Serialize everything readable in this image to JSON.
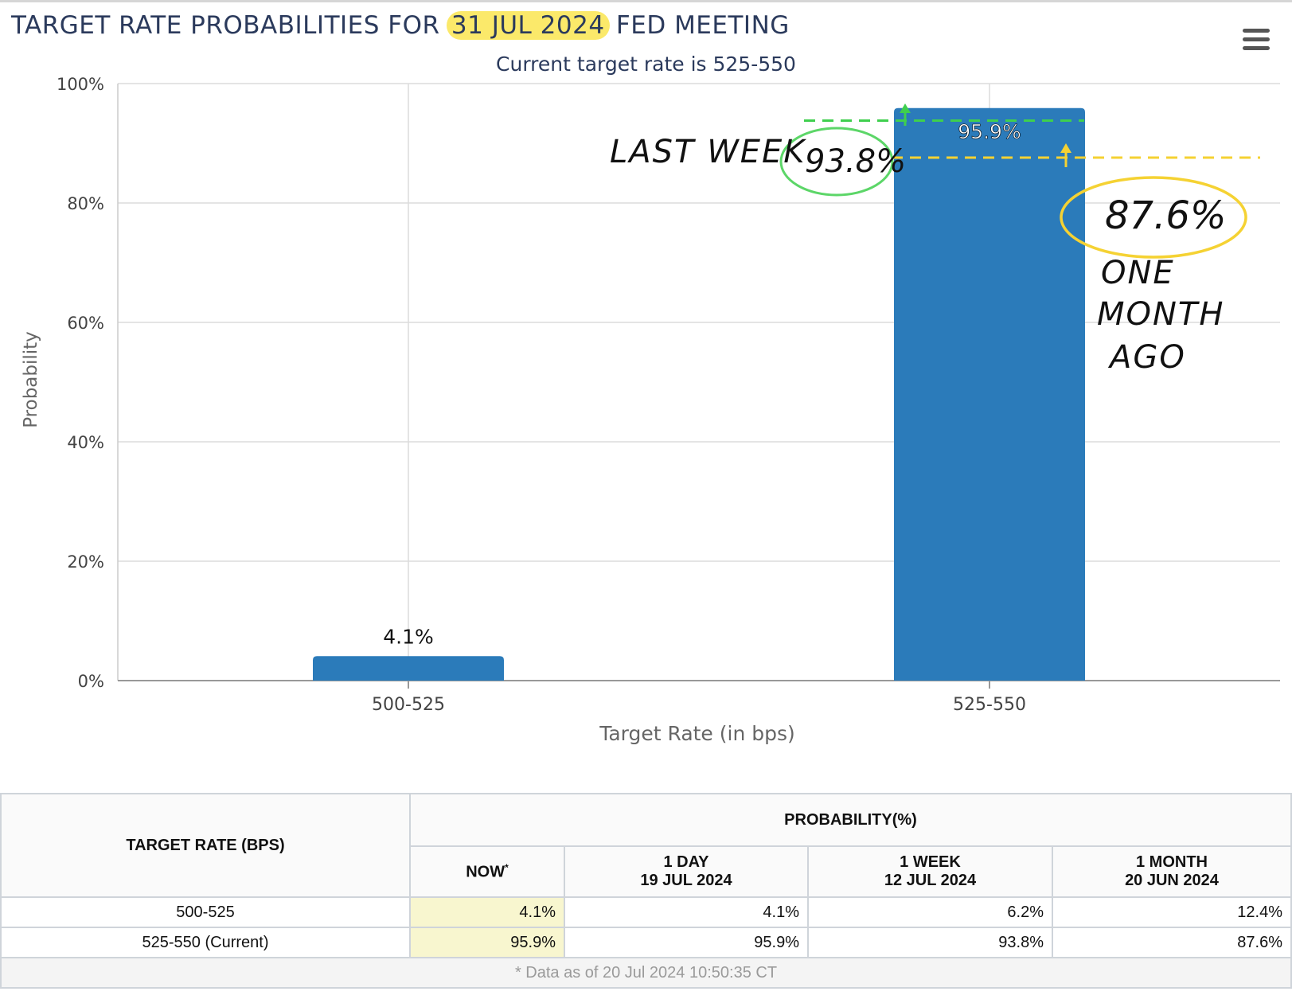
{
  "header": {
    "title_prefix": "TARGET RATE PROBABILITIES FOR",
    "title_date": "31 JUL 2024",
    "title_suffix": "FED MEETING",
    "subtitle": "Current target rate is 525-550",
    "menu_icon": "hamburger-menu-icon"
  },
  "chart_data": {
    "type": "bar",
    "categories": [
      "500-525",
      "525-550"
    ],
    "values": [
      4.1,
      95.9
    ],
    "data_labels": [
      "4.1%",
      "95.9%"
    ],
    "xlabel": "Target Rate (in bps)",
    "ylabel": "Probability",
    "ylim": [
      0,
      100
    ],
    "yticks": [
      0,
      20,
      40,
      60,
      80,
      100
    ],
    "ytick_labels": [
      "0%",
      "20%",
      "40%",
      "60%",
      "80%",
      "100%"
    ],
    "grid": true,
    "bar_color": "#2b7bba",
    "annotations": [
      {
        "text_before": "LAST WEEK",
        "text": "93.8%",
        "value": 93.8,
        "color": "#3fcf4e"
      },
      {
        "text": "87.6%",
        "text_after": "ONE MONTH AGO",
        "value": 87.6,
        "color": "#f5d233"
      }
    ]
  },
  "annotations": {
    "last_week_label": "LAST WEEK",
    "last_week_value": "93.8%",
    "month_value": "87.6%",
    "month_label_1": "ONE",
    "month_label_2": "MONTH",
    "month_label_3": "AGO"
  },
  "table": {
    "target_rate_header": "TARGET RATE (BPS)",
    "probability_header": "PROBABILITY(%)",
    "columns": [
      {
        "line1": "NOW",
        "line2": "",
        "marker": "*"
      },
      {
        "line1": "1 DAY",
        "line2": "19 JUL 2024"
      },
      {
        "line1": "1 WEEK",
        "line2": "12 JUL 2024"
      },
      {
        "line1": "1 MONTH",
        "line2": "20 JUN 2024"
      }
    ],
    "rows": [
      {
        "rate": "500-525",
        "values": [
          "4.1%",
          "4.1%",
          "6.2%",
          "12.4%"
        ]
      },
      {
        "rate": "525-550 (Current)",
        "values": [
          "95.9%",
          "95.9%",
          "93.8%",
          "87.6%"
        ]
      }
    ],
    "footnote": "* Data as of 20 Jul 2024 10:50:35 CT"
  }
}
